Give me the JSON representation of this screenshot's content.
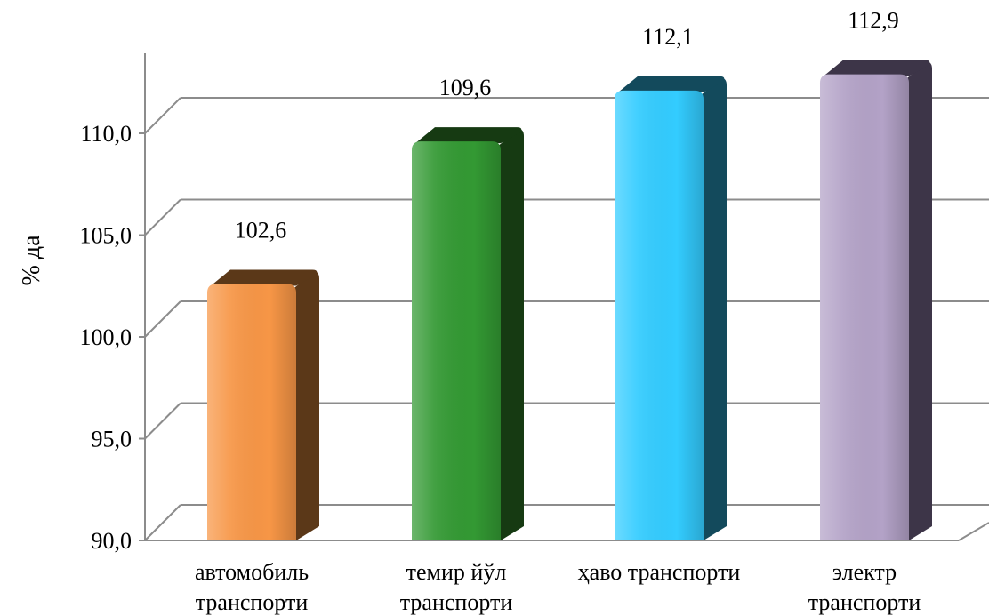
{
  "chart_data": {
    "type": "bar",
    "ylabel": "% да",
    "ylim": [
      90,
      115
    ],
    "yticks": [
      90,
      95,
      100,
      105,
      110
    ],
    "ytick_labels": [
      "90,0",
      "95,0",
      "100,0",
      "105,0",
      "110,0"
    ],
    "categories": [
      [
        "автомобиль",
        "транспорти"
      ],
      [
        "темир йўл",
        "транспорти"
      ],
      [
        "ҳаво транспорти"
      ],
      [
        "электр",
        "транспорти"
      ]
    ],
    "values": [
      102.6,
      109.6,
      112.1,
      112.9
    ],
    "value_labels": [
      "102,6",
      "109,6",
      "112,1",
      "112,9"
    ],
    "colors": {
      "front": [
        "#f79646",
        "#339933",
        "#33ccff",
        "#b3a2c7"
      ],
      "side": [
        "#5b3818",
        "#163a12",
        "#134a5c",
        "#3d3548"
      ]
    },
    "grid": true,
    "legend": "none"
  }
}
